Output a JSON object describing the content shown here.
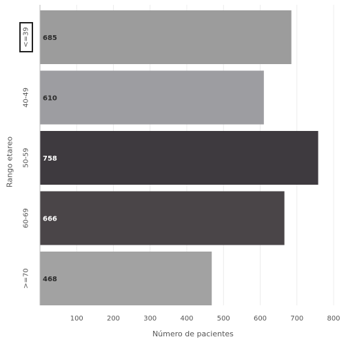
{
  "chart_data": {
    "type": "bar",
    "orientation": "horizontal",
    "title": "",
    "xlabel": "Número de pacientes",
    "ylabel": "Rango etareo",
    "categories": [
      "<=39",
      "40-49",
      "50-59",
      "60-69",
      ">=70"
    ],
    "values": [
      685,
      610,
      758,
      666,
      468
    ],
    "value_labels": [
      "685",
      "610",
      "758",
      "666",
      "468"
    ],
    "xticks": [
      100,
      200,
      300,
      400,
      500,
      600,
      700,
      800
    ],
    "xtick_labels": [
      "100",
      "200",
      "300",
      "400",
      "500",
      "600",
      "700",
      "800"
    ],
    "xlim": [
      0,
      800
    ],
    "grid": "vertical",
    "legend": "none",
    "highlighted_category": "<=39",
    "colors": [
      "#9c9c9c",
      "#9d9da1",
      "#3e3a3f",
      "#4a4548",
      "#a2a2a2"
    ],
    "label_colors": [
      "#2b2b2b",
      "#2b2b2b",
      "#ffffff",
      "#ffffff",
      "#2b2b2b"
    ]
  }
}
